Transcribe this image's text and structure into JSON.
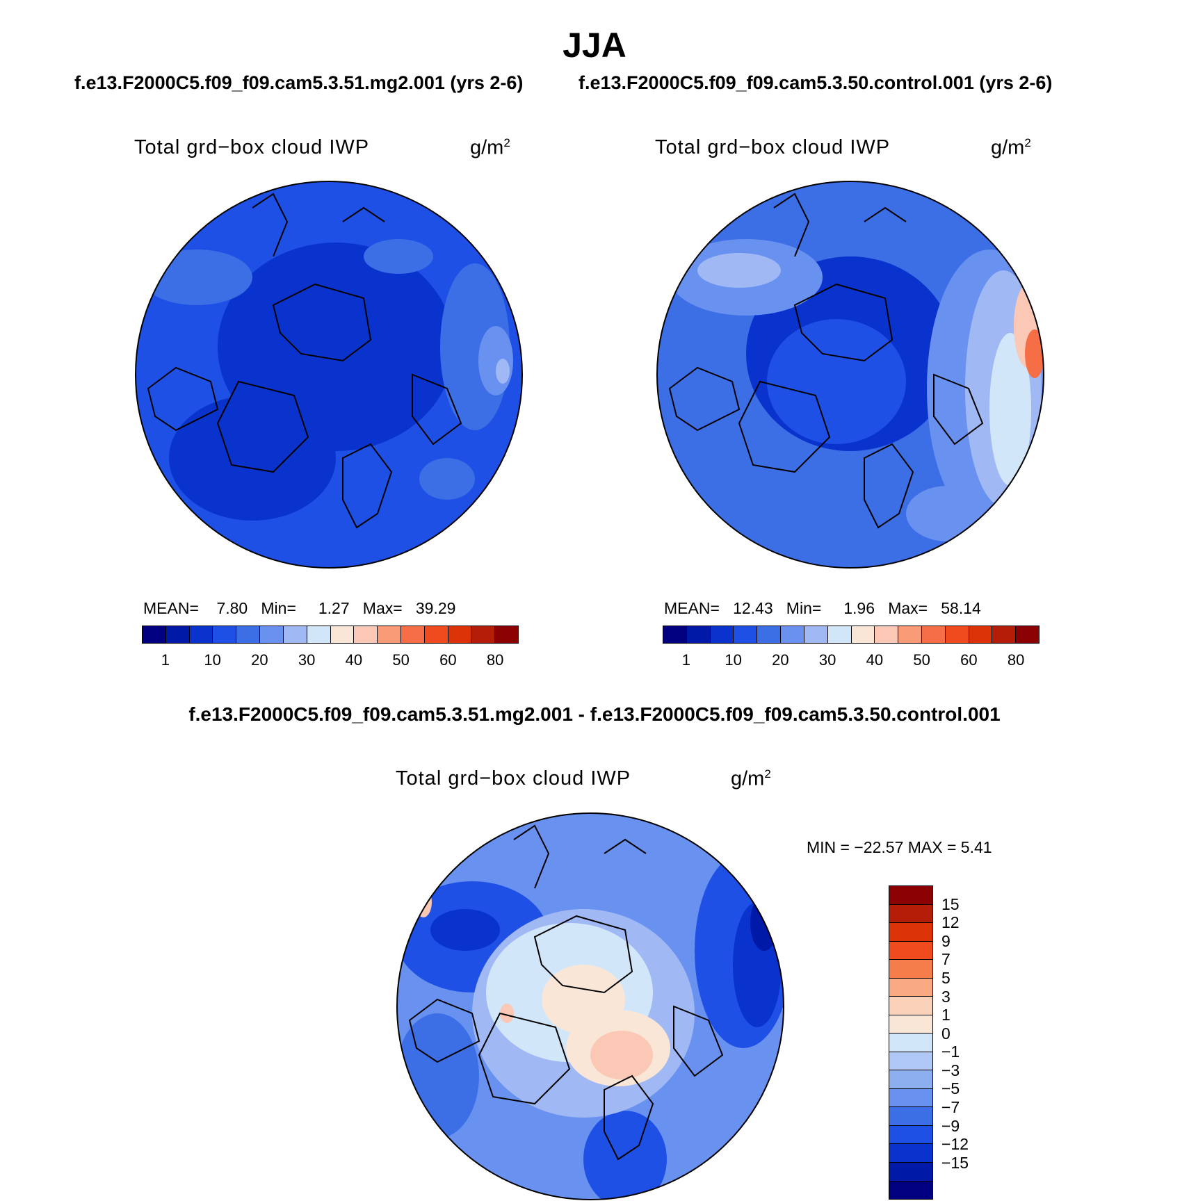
{
  "season": "JJA",
  "case_left": "f.e13.F2000C5.f09_f09.cam5.3.51.mg2.001 (yrs 2-6)",
  "case_right": "f.e13.F2000C5.f09_f09.cam5.3.50.control.001 (yrs 2-6)",
  "diff_title": "f.e13.F2000C5.f09_f09.cam5.3.51.mg2.001 - f.e13.F2000C5.f09_f09.cam5.3.50.control.001",
  "panels": [
    {
      "variable": "Total grd−box cloud IWP",
      "units": "g/m",
      "units_exp": "2",
      "mean_label": "MEAN=",
      "mean": "7.80",
      "min_label": "Min=",
      "min": "1.27",
      "max_label": "Max=",
      "max": "39.29"
    },
    {
      "variable": "Total grd−box cloud IWP",
      "units": "g/m",
      "units_exp": "2",
      "mean_label": "MEAN=",
      "mean": "12.43",
      "min_label": "Min=",
      "min": "1.96",
      "max_label": "Max=",
      "max": "58.14"
    },
    {
      "variable": "Total grd−box cloud IWP",
      "units": "g/m",
      "units_exp": "2",
      "minmax": "MIN = −22.57  MAX =    5.41"
    }
  ],
  "colorbar_abs": {
    "colors": [
      "#000080",
      "#0019a6",
      "#0a32cc",
      "#1e50e6",
      "#3c6ee6",
      "#6991f0",
      "#a0b9f5",
      "#d2e6fa",
      "#fae6d7",
      "#fac8b4",
      "#fa9b78",
      "#f56e46",
      "#f04b1e",
      "#dc3208",
      "#b41e08",
      "#8b0000"
    ],
    "labels": [
      "1",
      "10",
      "20",
      "30",
      "40",
      "50",
      "60",
      "80"
    ]
  },
  "colorbar_diff": {
    "colors": [
      "#8b0000",
      "#b41e08",
      "#dc3208",
      "#f04b1e",
      "#f57d4b",
      "#faaa82",
      "#fad2b9",
      "#fae6d7",
      "#d2e6fa",
      "#afc8f5",
      "#8cafef",
      "#6991f0",
      "#3c6ee6",
      "#1e50e6",
      "#0a32cc",
      "#0019a6",
      "#000080"
    ],
    "labels": [
      "15",
      "12",
      "9",
      "7",
      "5",
      "3",
      "1",
      "0",
      "−1",
      "−3",
      "−5",
      "−7",
      "−9",
      "−12",
      "−15"
    ]
  }
}
